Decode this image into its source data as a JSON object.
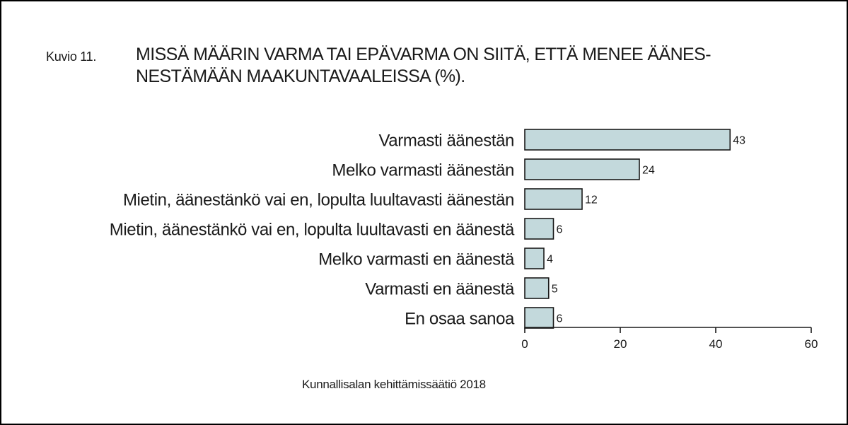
{
  "figure": {
    "label": "Kuvio 11.",
    "title_lines": [
      "MISSÄ MÄÄRIN VARMA TAI EPÄVARMA ON SIITÄ, ETTÄ MENEE ÄÄNES-",
      "NESTÄMÄÄN MAAKUNTAVAALEISSA (%)."
    ],
    "source": "Kunnallisalan kehittämissäätiö 2018"
  },
  "colors": {
    "bar_fill": "#c3d9dc",
    "bar_stroke": "#1a1a1a",
    "axis": "#1a1a1a"
  },
  "chart_data": {
    "type": "bar",
    "orientation": "horizontal",
    "title": "MISSÄ MÄÄRIN VARMA TAI EPÄVARMA ON SIITÄ, ETTÄ MENEE ÄÄNESNESTÄMÄÄN MAAKUNTAVAALEISSA (%).",
    "categories": [
      "Varmasti äänestän",
      "Melko varmasti äänestän",
      "Mietin, äänestänkö vai en, lopulta luultavasti äänestän",
      "Mietin, äänestänkö vai en, lopulta luultavasti en äänestä",
      "Melko varmasti en äänestä",
      "Varmasti en äänestä",
      "En osaa sanoa"
    ],
    "values": [
      43,
      24,
      12,
      6,
      4,
      5,
      6
    ],
    "xlim": [
      0,
      60
    ],
    "xticks": [
      0,
      20,
      40,
      60
    ],
    "xlabel": "",
    "ylabel": "",
    "grid": false,
    "legend": "none",
    "data_labels": true
  }
}
